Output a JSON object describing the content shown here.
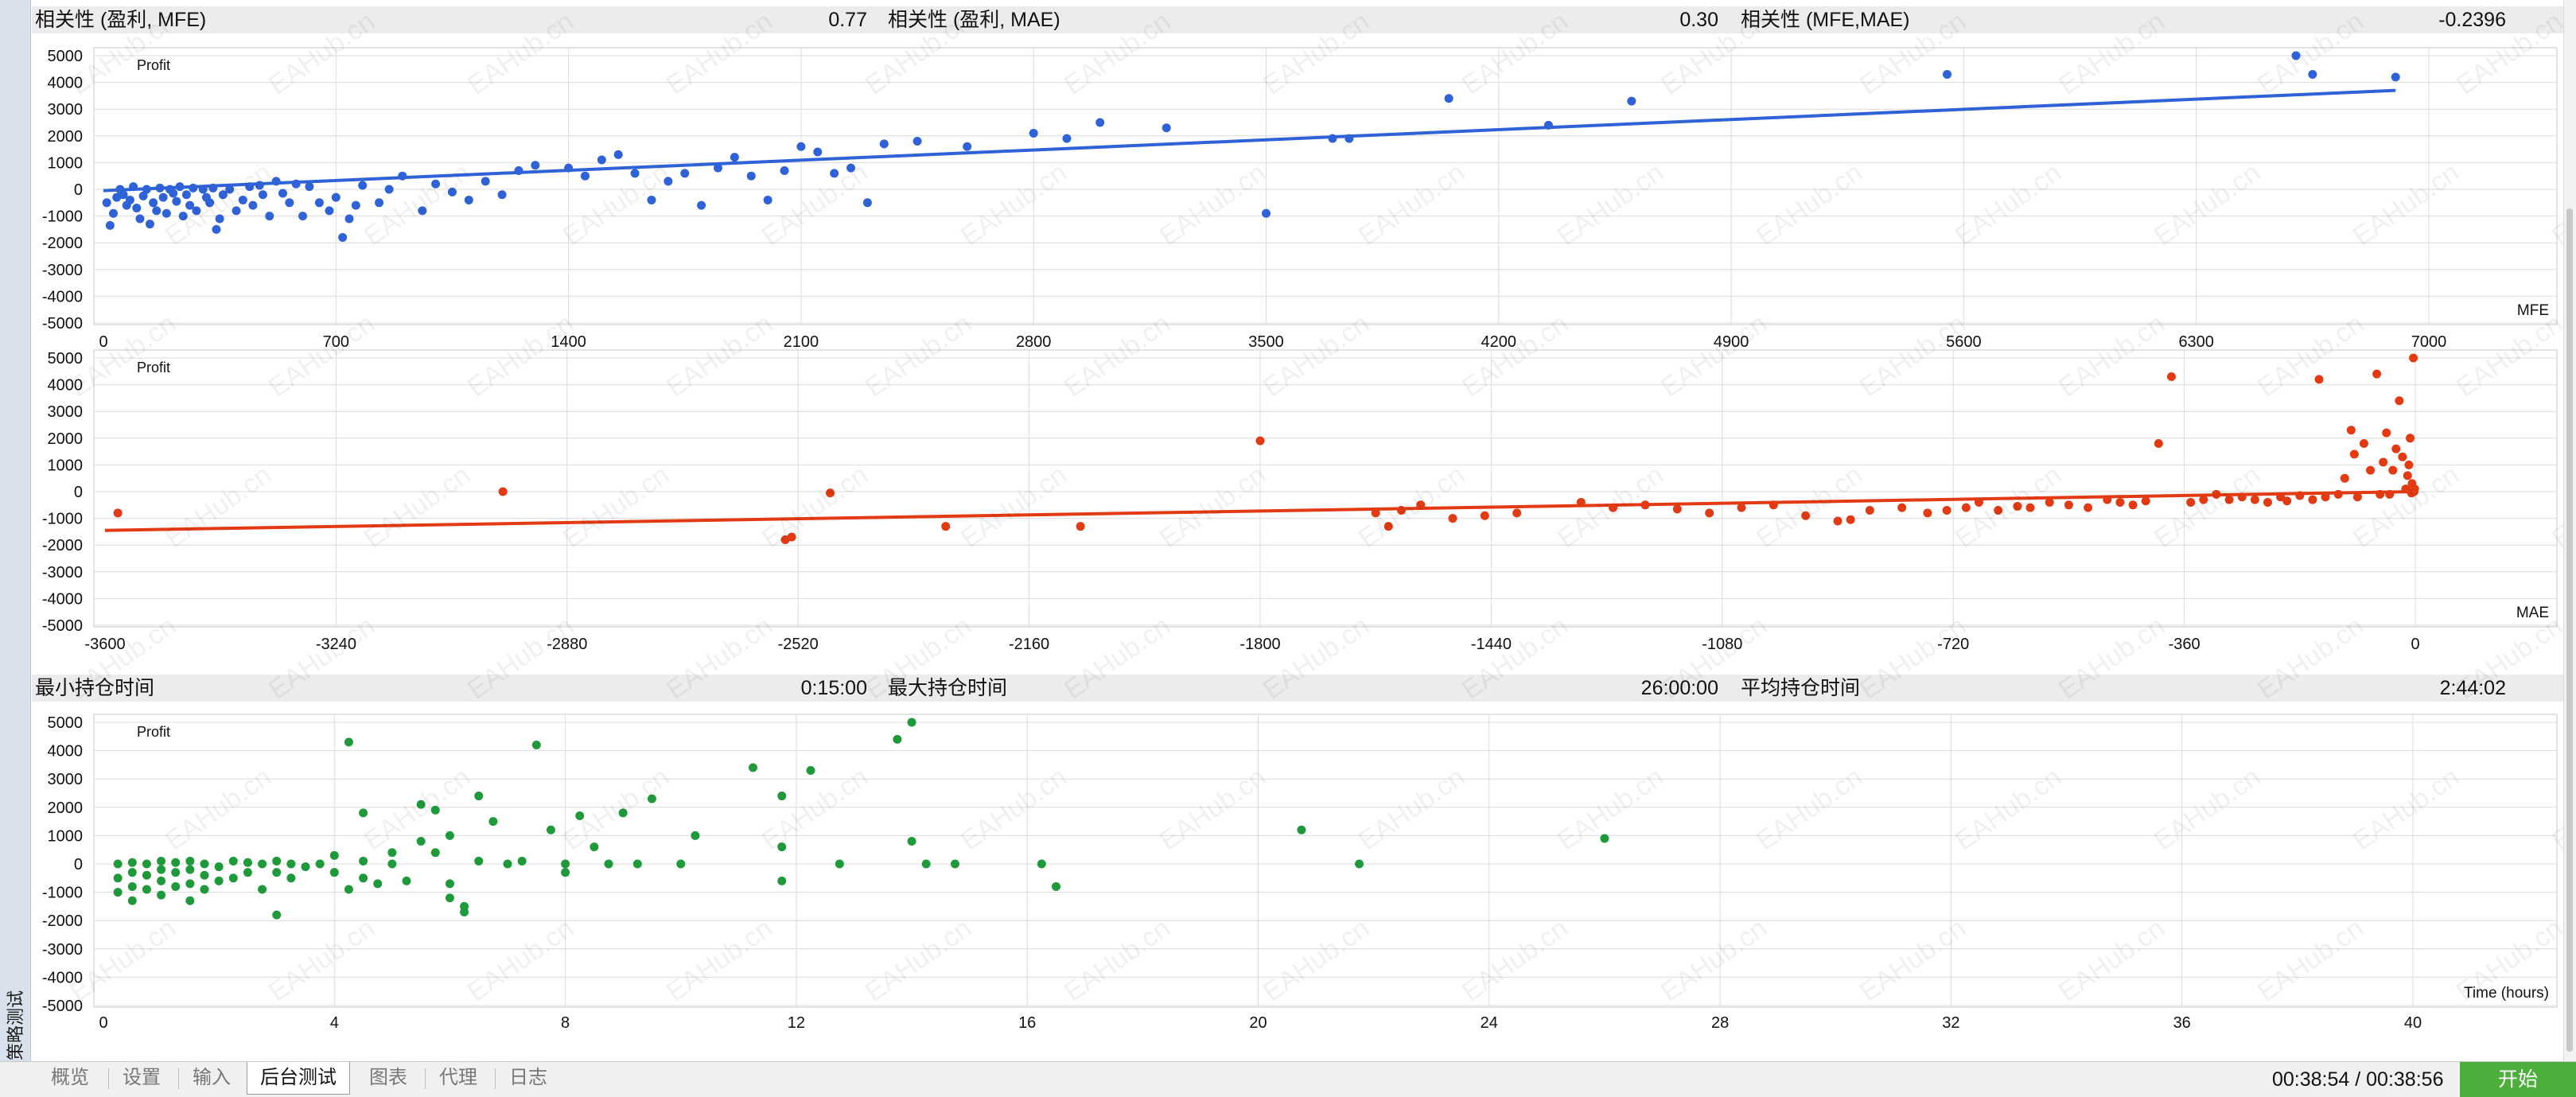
{
  "sidebar": {
    "title": "策略测试"
  },
  "stats_top": {
    "corr_profit_mfe_label": "相关性 (盈利, MFE)",
    "corr_profit_mfe_value": "0.77",
    "corr_profit_mae_label": "相关性 (盈利, MAE)",
    "corr_profit_mae_value": "0.30",
    "corr_mfe_mae_label": "相关性 (MFE,MAE)",
    "corr_mfe_mae_value": "-0.2396"
  },
  "stats_mid": {
    "min_hold_label": "最小持仓时间",
    "min_hold_value": "0:15:00",
    "max_hold_label": "最大持仓时间",
    "max_hold_value": "26:00:00",
    "avg_hold_label": "平均持仓时间",
    "avg_hold_value": "2:44:02"
  },
  "watermark": "EAHub.cn",
  "tabs": [
    {
      "label": "概览",
      "active": false
    },
    {
      "label": "设置",
      "active": false
    },
    {
      "label": "输入",
      "active": false
    },
    {
      "label": "后台测试",
      "active": true
    },
    {
      "label": "图表",
      "active": false
    },
    {
      "label": "代理",
      "active": false
    },
    {
      "label": "日志",
      "active": false
    }
  ],
  "status": {
    "timer": "00:38:54 / 00:38:56",
    "start_label": "开始"
  },
  "colors": {
    "mfe": "#2f62d6",
    "mae": "#e23a12",
    "time": "#1f9a3b",
    "grid": "#dcdcdc"
  },
  "chart_data": [
    {
      "type": "scatter",
      "ylabel": "Profit",
      "xlabel": "MFE",
      "xlim": [
        0,
        7300
      ],
      "ylim": [
        -5000,
        5000
      ],
      "xticks": [
        "0",
        "700",
        "1400",
        "2100",
        "2800",
        "3500",
        "4200",
        "4900",
        "5600",
        "6300",
        "7000"
      ],
      "yticks": [
        "5000",
        "4000",
        "3000",
        "2000",
        "1000",
        "0",
        "-1000",
        "-2000",
        "-3000",
        "-4000",
        "-5000"
      ],
      "trendline": [
        [
          0,
          -50
        ],
        [
          6900,
          3700
        ]
      ],
      "points": [
        [
          10,
          -500
        ],
        [
          20,
          -1350
        ],
        [
          30,
          -900
        ],
        [
          40,
          -300
        ],
        [
          50,
          0
        ],
        [
          60,
          -200
        ],
        [
          70,
          -600
        ],
        [
          80,
          -400
        ],
        [
          90,
          100
        ],
        [
          100,
          -700
        ],
        [
          110,
          -1100
        ],
        [
          120,
          -250
        ],
        [
          130,
          0
        ],
        [
          140,
          -1300
        ],
        [
          150,
          -500
        ],
        [
          160,
          -800
        ],
        [
          170,
          50
        ],
        [
          180,
          -300
        ],
        [
          190,
          -900
        ],
        [
          200,
          0
        ],
        [
          210,
          -150
        ],
        [
          220,
          -450
        ],
        [
          230,
          100
        ],
        [
          240,
          -1000
        ],
        [
          250,
          -200
        ],
        [
          260,
          -600
        ],
        [
          270,
          50
        ],
        [
          280,
          -800
        ],
        [
          300,
          0
        ],
        [
          310,
          -300
        ],
        [
          320,
          -500
        ],
        [
          330,
          50
        ],
        [
          340,
          -1500
        ],
        [
          350,
          -1100
        ],
        [
          360,
          -200
        ],
        [
          380,
          0
        ],
        [
          400,
          -800
        ],
        [
          420,
          -400
        ],
        [
          440,
          100
        ],
        [
          450,
          -600
        ],
        [
          470,
          150
        ],
        [
          480,
          -200
        ],
        [
          500,
          -1000
        ],
        [
          520,
          300
        ],
        [
          540,
          -150
        ],
        [
          560,
          -500
        ],
        [
          580,
          200
        ],
        [
          600,
          -1000
        ],
        [
          620,
          100
        ],
        [
          650,
          -500
        ],
        [
          680,
          -800
        ],
        [
          700,
          -300
        ],
        [
          720,
          -1800
        ],
        [
          740,
          -1100
        ],
        [
          760,
          -600
        ],
        [
          780,
          150
        ],
        [
          830,
          -500
        ],
        [
          860,
          0
        ],
        [
          900,
          500
        ],
        [
          960,
          -800
        ],
        [
          1000,
          200
        ],
        [
          1050,
          -100
        ],
        [
          1100,
          -400
        ],
        [
          1150,
          300
        ],
        [
          1200,
          -200
        ],
        [
          1250,
          700
        ],
        [
          1300,
          900
        ],
        [
          1400,
          800
        ],
        [
          1450,
          500
        ],
        [
          1500,
          1100
        ],
        [
          1550,
          1300
        ],
        [
          1600,
          600
        ],
        [
          1650,
          -400
        ],
        [
          1700,
          300
        ],
        [
          1750,
          600
        ],
        [
          1800,
          -600
        ],
        [
          1850,
          800
        ],
        [
          1900,
          1200
        ],
        [
          1950,
          500
        ],
        [
          2000,
          -400
        ],
        [
          2050,
          700
        ],
        [
          2100,
          1600
        ],
        [
          2150,
          1400
        ],
        [
          2200,
          600
        ],
        [
          2250,
          800
        ],
        [
          2300,
          -500
        ],
        [
          2350,
          1700
        ],
        [
          2450,
          1800
        ],
        [
          2600,
          1600
        ],
        [
          2800,
          2100
        ],
        [
          2900,
          1900
        ],
        [
          3000,
          2500
        ],
        [
          3200,
          2300
        ],
        [
          3500,
          -900
        ],
        [
          3700,
          1900
        ],
        [
          3750,
          1900
        ],
        [
          4050,
          3400
        ],
        [
          4350,
          2400
        ],
        [
          4600,
          3300
        ],
        [
          5550,
          4300
        ],
        [
          6600,
          5000
        ],
        [
          6650,
          4300
        ],
        [
          6900,
          4200
        ]
      ]
    },
    {
      "type": "scatter",
      "ylabel": "Profit",
      "xlabel": "MAE",
      "xlim": [
        -3650,
        0
      ],
      "ylim": [
        -5000,
        5000
      ],
      "xticks": [
        "-3600",
        "-3240",
        "-2880",
        "-2520",
        "-2160",
        "-1800",
        "-1440",
        "-1080",
        "-720",
        "-360",
        "0"
      ],
      "yticks": [
        "5000",
        "4000",
        "3000",
        "2000",
        "1000",
        "0",
        "-1000",
        "-2000",
        "-3000",
        "-4000",
        "-5000"
      ],
      "trendline": [
        [
          -3600,
          -1450
        ],
        [
          0,
          0
        ]
      ],
      "points": [
        [
          -3580,
          -800
        ],
        [
          -2980,
          0
        ],
        [
          -2540,
          -1800
        ],
        [
          -2530,
          -1700
        ],
        [
          -2470,
          -50
        ],
        [
          -2290,
          -1300
        ],
        [
          -2080,
          -1300
        ],
        [
          -1800,
          1900
        ],
        [
          -1620,
          -800
        ],
        [
          -1600,
          -1300
        ],
        [
          -1580,
          -700
        ],
        [
          -1550,
          -500
        ],
        [
          -1500,
          -1000
        ],
        [
          -1450,
          -900
        ],
        [
          -1400,
          -800
        ],
        [
          -1300,
          -400
        ],
        [
          -1250,
          -600
        ],
        [
          -1200,
          -500
        ],
        [
          -1150,
          -650
        ],
        [
          -1100,
          -800
        ],
        [
          -1050,
          -600
        ],
        [
          -1000,
          -500
        ],
        [
          -950,
          -900
        ],
        [
          -900,
          -1100
        ],
        [
          -880,
          -1050
        ],
        [
          -850,
          -700
        ],
        [
          -800,
          -600
        ],
        [
          -760,
          -800
        ],
        [
          -730,
          -700
        ],
        [
          -700,
          -600
        ],
        [
          -680,
          -400
        ],
        [
          -650,
          -700
        ],
        [
          -620,
          -550
        ],
        [
          -600,
          -600
        ],
        [
          -570,
          -400
        ],
        [
          -540,
          -500
        ],
        [
          -510,
          -600
        ],
        [
          -480,
          -300
        ],
        [
          -460,
          -400
        ],
        [
          -440,
          -500
        ],
        [
          -420,
          -350
        ],
        [
          -400,
          1800
        ],
        [
          -380,
          4300
        ],
        [
          -350,
          -400
        ],
        [
          -330,
          -300
        ],
        [
          -310,
          -100
        ],
        [
          -290,
          -300
        ],
        [
          -270,
          -200
        ],
        [
          -250,
          -300
        ],
        [
          -230,
          -400
        ],
        [
          -210,
          -200
        ],
        [
          -200,
          -350
        ],
        [
          -180,
          -150
        ],
        [
          -160,
          -300
        ],
        [
          -150,
          4200
        ],
        [
          -140,
          -200
        ],
        [
          -120,
          -100
        ],
        [
          -110,
          500
        ],
        [
          -100,
          2300
        ],
        [
          -95,
          1400
        ],
        [
          -90,
          -200
        ],
        [
          -80,
          1800
        ],
        [
          -70,
          800
        ],
        [
          -60,
          4400
        ],
        [
          -55,
          -100
        ],
        [
          -50,
          1100
        ],
        [
          -45,
          2200
        ],
        [
          -40,
          -100
        ],
        [
          -35,
          800
        ],
        [
          -30,
          1600
        ],
        [
          -25,
          3400
        ],
        [
          -20,
          1300
        ],
        [
          -15,
          100
        ],
        [
          -12,
          600
        ],
        [
          -10,
          1000
        ],
        [
          -8,
          2000
        ],
        [
          -6,
          -50
        ],
        [
          -5,
          300
        ],
        [
          -4,
          100
        ],
        [
          -3,
          5000
        ],
        [
          -2,
          0
        ],
        [
          -1,
          100
        ]
      ]
    },
    {
      "type": "scatter",
      "ylabel": "Profit",
      "xlabel": "Time (hours)",
      "xlim": [
        0,
        41.5
      ],
      "ylim": [
        -5000,
        5000
      ],
      "xticks": [
        "0",
        "4",
        "8",
        "12",
        "16",
        "20",
        "24",
        "28",
        "32",
        "36",
        "40"
      ],
      "yticks": [
        "5000",
        "4000",
        "3000",
        "2000",
        "1000",
        "0",
        "-1000",
        "-2000",
        "-3000",
        "-4000",
        "-5000"
      ],
      "points": [
        [
          0.25,
          -1000
        ],
        [
          0.25,
          -500
        ],
        [
          0.25,
          0
        ],
        [
          0.5,
          -1300
        ],
        [
          0.5,
          -800
        ],
        [
          0.5,
          -300
        ],
        [
          0.5,
          50
        ],
        [
          0.75,
          -900
        ],
        [
          0.75,
          -400
        ],
        [
          0.75,
          0
        ],
        [
          1.0,
          -1100
        ],
        [
          1.0,
          -600
        ],
        [
          1.0,
          -200
        ],
        [
          1.0,
          100
        ],
        [
          1.25,
          -800
        ],
        [
          1.25,
          -300
        ],
        [
          1.25,
          50
        ],
        [
          1.5,
          -1300
        ],
        [
          1.5,
          -700
        ],
        [
          1.5,
          -200
        ],
        [
          1.5,
          100
        ],
        [
          1.75,
          -900
        ],
        [
          1.75,
          -400
        ],
        [
          1.75,
          0
        ],
        [
          2.0,
          -600
        ],
        [
          2.0,
          -100
        ],
        [
          2.25,
          -500
        ],
        [
          2.25,
          100
        ],
        [
          2.5,
          -300
        ],
        [
          2.5,
          50
        ],
        [
          2.75,
          -900
        ],
        [
          2.75,
          0
        ],
        [
          3.0,
          -1800
        ],
        [
          3.0,
          -300
        ],
        [
          3.0,
          100
        ],
        [
          3.25,
          -500
        ],
        [
          3.25,
          0
        ],
        [
          3.5,
          -100
        ],
        [
          3.75,
          0
        ],
        [
          4.0,
          300
        ],
        [
          4.0,
          -300
        ],
        [
          4.25,
          4300
        ],
        [
          4.25,
          -900
        ],
        [
          4.5,
          100
        ],
        [
          4.5,
          -500
        ],
        [
          4.5,
          1800
        ],
        [
          4.75,
          -700
        ],
        [
          5.0,
          400
        ],
        [
          5.0,
          0
        ],
        [
          5.25,
          -600
        ],
        [
          5.5,
          2100
        ],
        [
          5.5,
          800
        ],
        [
          5.75,
          1900
        ],
        [
          5.75,
          400
        ],
        [
          6.0,
          -700
        ],
        [
          6.0,
          1000
        ],
        [
          6.0,
          -1200
        ],
        [
          6.25,
          -1500
        ],
        [
          6.25,
          -1700
        ],
        [
          6.5,
          2400
        ],
        [
          6.5,
          100
        ],
        [
          6.75,
          1500
        ],
        [
          7.0,
          0
        ],
        [
          7.25,
          100
        ],
        [
          7.5,
          4200
        ],
        [
          7.75,
          1200
        ],
        [
          8.0,
          -300
        ],
        [
          8.0,
          0
        ],
        [
          8.25,
          1700
        ],
        [
          8.5,
          600
        ],
        [
          8.75,
          0
        ],
        [
          9.0,
          1800
        ],
        [
          9.25,
          0
        ],
        [
          9.5,
          2300
        ],
        [
          10.0,
          0
        ],
        [
          10.25,
          1000
        ],
        [
          11.25,
          3400
        ],
        [
          11.75,
          2400
        ],
        [
          11.75,
          600
        ],
        [
          11.75,
          -600
        ],
        [
          12.25,
          3300
        ],
        [
          12.75,
          0
        ],
        [
          13.75,
          4400
        ],
        [
          14.0,
          5000
        ],
        [
          14.0,
          800
        ],
        [
          14.25,
          0
        ],
        [
          14.75,
          0
        ],
        [
          16.25,
          0
        ],
        [
          16.5,
          -800
        ],
        [
          20.75,
          1200
        ],
        [
          21.75,
          0
        ],
        [
          26.0,
          900
        ]
      ]
    }
  ]
}
